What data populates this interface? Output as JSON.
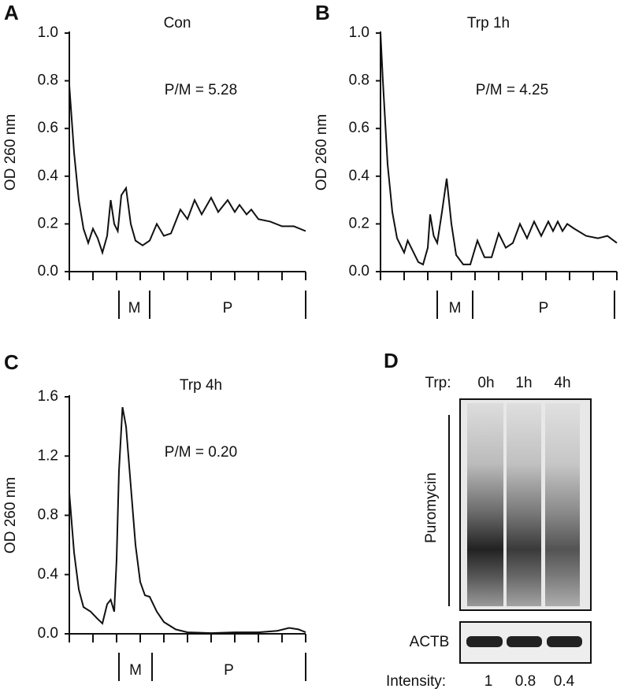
{
  "chart_data": [
    {
      "type": "line",
      "panel": "A",
      "title": "Con",
      "annotation": "P/M = 5.28",
      "ylabel": "OD 260 nm",
      "color": "#111111",
      "ylim": [
        0,
        1
      ],
      "yticks": [
        {
          "value": 0,
          "label": "0.0"
        },
        0.2,
        0.4,
        0.6,
        0.8,
        {
          "value": 1,
          "label": "1.0"
        }
      ],
      "xlim": [
        0,
        1
      ],
      "x": [
        0,
        0.02,
        0.04,
        0.06,
        0.08,
        0.1,
        0.12,
        0.14,
        0.16,
        0.175,
        0.19,
        0.205,
        0.22,
        0.24,
        0.26,
        0.28,
        0.31,
        0.34,
        0.37,
        0.4,
        0.43,
        0.47,
        0.5,
        0.53,
        0.56,
        0.6,
        0.63,
        0.67,
        0.7,
        0.72,
        0.75,
        0.77,
        0.8,
        0.85,
        0.9,
        0.95,
        1.0
      ],
      "values": [
        0.78,
        0.5,
        0.3,
        0.18,
        0.12,
        0.18,
        0.14,
        0.08,
        0.15,
        0.3,
        0.2,
        0.17,
        0.32,
        0.35,
        0.2,
        0.13,
        0.11,
        0.13,
        0.2,
        0.15,
        0.16,
        0.26,
        0.22,
        0.3,
        0.24,
        0.31,
        0.25,
        0.3,
        0.25,
        0.28,
        0.24,
        0.26,
        0.22,
        0.21,
        0.19,
        0.19,
        0.17
      ],
      "regions": [
        {
          "label": "M",
          "x": [
            0.21,
            0.34
          ]
        },
        {
          "label": "P",
          "x": [
            0.34,
            1.0
          ]
        }
      ]
    },
    {
      "type": "line",
      "panel": "B",
      "title": "Trp 1h",
      "annotation": "P/M = 4.25",
      "ylabel": "OD 260 nm",
      "color": "#111111",
      "ylim": [
        0,
        1
      ],
      "yticks": [
        {
          "value": 0,
          "label": "0.0"
        },
        0.2,
        0.4,
        0.6,
        0.8,
        {
          "value": 1,
          "label": "1.0"
        }
      ],
      "xlim": [
        0,
        1
      ],
      "x": [
        0,
        0.01,
        0.03,
        0.05,
        0.07,
        0.1,
        0.115,
        0.13,
        0.16,
        0.18,
        0.2,
        0.21,
        0.225,
        0.24,
        0.26,
        0.28,
        0.3,
        0.32,
        0.35,
        0.38,
        0.41,
        0.44,
        0.47,
        0.5,
        0.53,
        0.56,
        0.59,
        0.62,
        0.65,
        0.68,
        0.71,
        0.73,
        0.75,
        0.77,
        0.79,
        0.82,
        0.87,
        0.92,
        0.96,
        1.0
      ],
      "values": [
        1.0,
        0.8,
        0.45,
        0.25,
        0.14,
        0.08,
        0.13,
        0.1,
        0.04,
        0.03,
        0.1,
        0.24,
        0.15,
        0.12,
        0.25,
        0.39,
        0.2,
        0.07,
        0.03,
        0.03,
        0.13,
        0.06,
        0.06,
        0.16,
        0.1,
        0.12,
        0.2,
        0.14,
        0.21,
        0.15,
        0.21,
        0.17,
        0.21,
        0.17,
        0.2,
        0.18,
        0.15,
        0.14,
        0.15,
        0.12
      ],
      "regions": [
        {
          "label": "M",
          "x": [
            0.24,
            0.39
          ]
        },
        {
          "label": "P",
          "x": [
            0.39,
            0.99
          ]
        }
      ]
    },
    {
      "type": "line",
      "panel": "C",
      "title": "Trp 4h",
      "annotation": "P/M = 0.20",
      "ylabel": "OD 260 nm",
      "color": "#111111",
      "ylim": [
        0,
        1.6
      ],
      "yticks": [
        {
          "value": 0,
          "label": "0.0"
        },
        0.4,
        0.8,
        1.2,
        1.6
      ],
      "xlim": [
        0,
        1
      ],
      "x": [
        0,
        0.02,
        0.04,
        0.06,
        0.09,
        0.12,
        0.14,
        0.16,
        0.175,
        0.19,
        0.2,
        0.21,
        0.225,
        0.24,
        0.26,
        0.28,
        0.3,
        0.32,
        0.34,
        0.37,
        0.4,
        0.45,
        0.5,
        0.6,
        0.7,
        0.8,
        0.88,
        0.93,
        0.97,
        1.0
      ],
      "values": [
        0.95,
        0.55,
        0.3,
        0.18,
        0.15,
        0.1,
        0.07,
        0.2,
        0.23,
        0.15,
        0.5,
        1.1,
        1.53,
        1.4,
        1.0,
        0.6,
        0.35,
        0.26,
        0.25,
        0.15,
        0.08,
        0.03,
        0.01,
        0.005,
        0.01,
        0.01,
        0.02,
        0.04,
        0.03,
        0.01
      ],
      "regions": [
        {
          "label": "M",
          "x": [
            0.21,
            0.35
          ]
        },
        {
          "label": "P",
          "x": [
            0.35,
            1.0
          ]
        }
      ]
    }
  ],
  "blot": {
    "panel": "D",
    "row_label": "Trp:",
    "lanes": [
      "0h",
      "1h",
      "4h"
    ],
    "bands": [
      "Puromycin",
      "ACTB"
    ],
    "intensity_label": "Intensity:",
    "intensity": [
      "1",
      "0.8",
      "0.4"
    ]
  }
}
